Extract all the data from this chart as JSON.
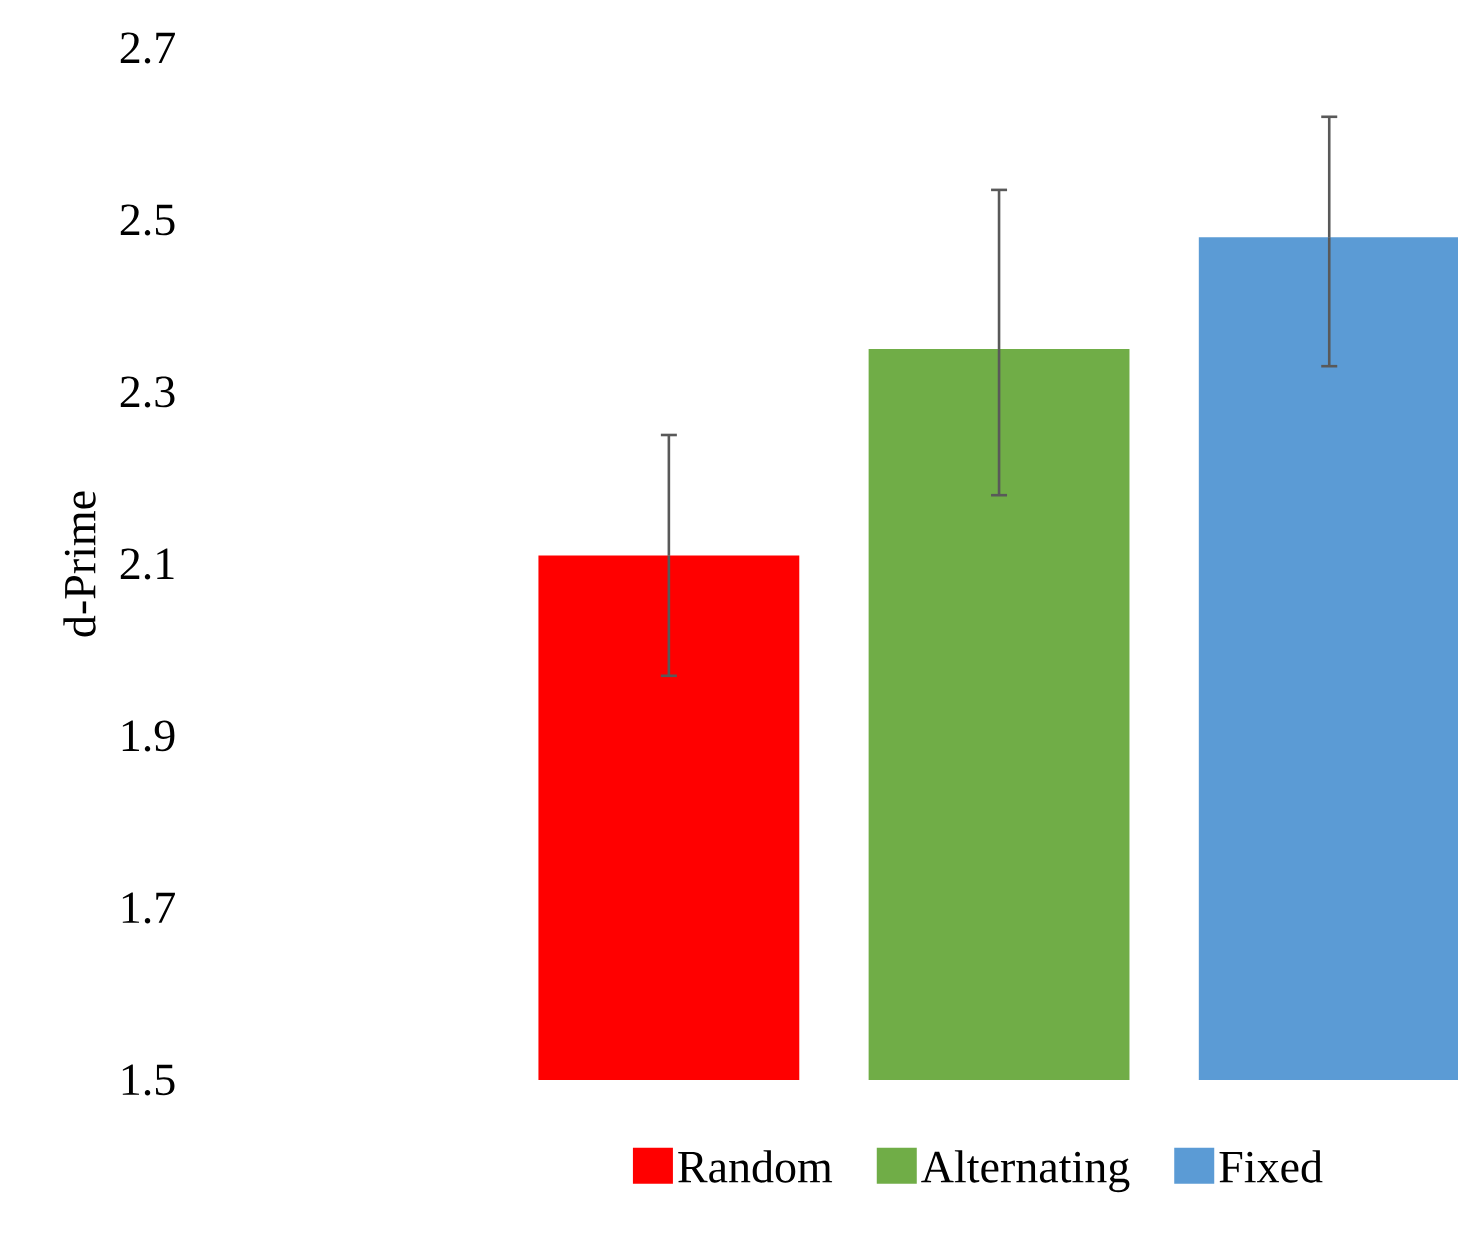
{
  "chart_data": {
    "type": "bar",
    "ylabel": "d-Prime",
    "categories": [
      null
    ],
    "series": [
      {
        "name": "Random",
        "color": "#ff0000",
        "values": [
          2.11
        ],
        "errors": [
          [
            1.97,
            2.25
          ]
        ]
      },
      {
        "name": "Alternating",
        "color": "#70ad47",
        "values": [
          2.35
        ],
        "errors": [
          [
            2.18,
            2.535
          ]
        ]
      },
      {
        "name": "Fixed",
        "color": "#5b9bd5",
        "values": [
          2.48
        ],
        "errors": [
          [
            2.33,
            2.62
          ]
        ]
      }
    ],
    "ylim": [
      1.5,
      2.7
    ],
    "yticks": [
      1.5,
      1.7,
      1.9,
      2.1,
      2.3,
      2.5,
      2.7
    ],
    "legend": "bottom",
    "grid": false
  }
}
